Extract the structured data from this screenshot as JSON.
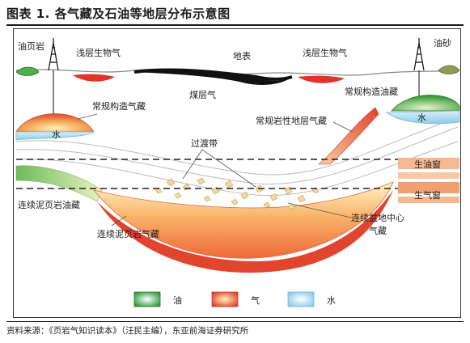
{
  "title": "图表 1.  各气藏及石油等地层分布示意图",
  "source": "资料来源：《页岩气知识读本》（汪民主编），东亚前海证券研究所",
  "labels": {
    "oil_shale": "油页岩",
    "shallow_bio_gas_left": "浅层生物气",
    "surface": "地表",
    "shallow_bio_gas_right": "浅层生物气",
    "oil_sand": "油砂",
    "coalbed_gas": "煤层气",
    "conventional_gas": "常规构造气藏",
    "conventional_oil": "常规构造油藏",
    "water_left": "水",
    "water_right": "水",
    "tight_gas": "常规岩性地层气藏",
    "transition_zone": "过渡带",
    "oil_window": "生油窗",
    "gas_window": "生气窗",
    "shale_oil": "连续泥页岩油藏",
    "shale_gas": "连续泥页岩气藏",
    "basin_center_gas_1": "连续盆地中心",
    "basin_center_gas_2": "气藏"
  },
  "legend": [
    {
      "label": "油",
      "color": "#3a9a3a"
    },
    {
      "label": "气",
      "color": "#e0402a"
    },
    {
      "label": "水",
      "color": "#9fd3ee"
    }
  ]
}
